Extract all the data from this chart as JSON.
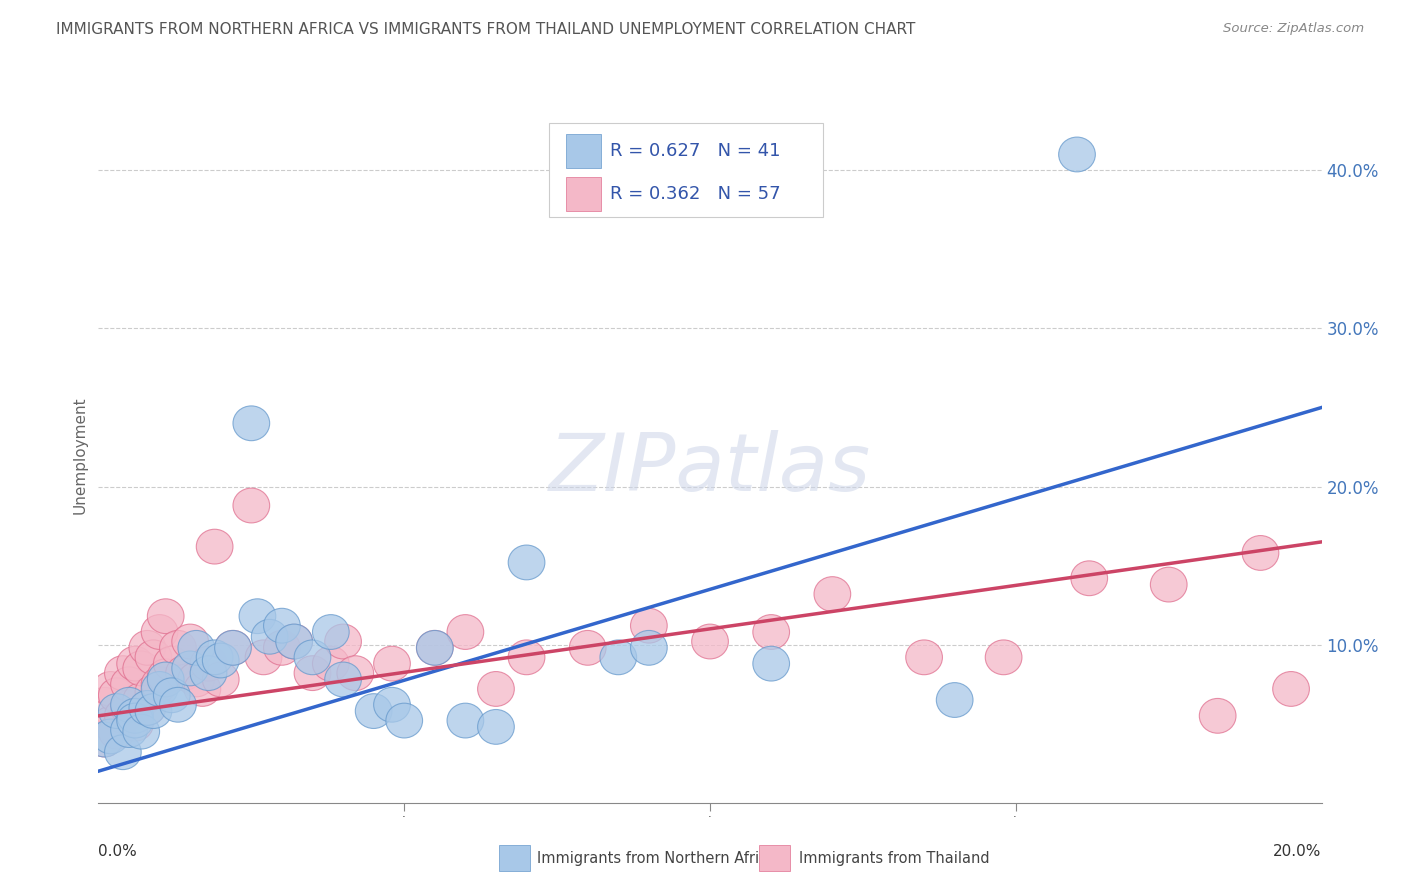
{
  "title": "IMMIGRANTS FROM NORTHERN AFRICA VS IMMIGRANTS FROM THAILAND UNEMPLOYMENT CORRELATION CHART",
  "source": "Source: ZipAtlas.com",
  "ylabel": "Unemployment",
  "xlim": [
    0.0,
    0.2
  ],
  "ylim": [
    0.0,
    0.44
  ],
  "r_na": 0.627,
  "n_na": 41,
  "r_th": 0.362,
  "n_th": 57,
  "color_blue": "#a8c8e8",
  "color_blue_edge": "#6699cc",
  "color_pink": "#f4b8c8",
  "color_pink_edge": "#e07090",
  "line_blue": "#3366cc",
  "line_pink": "#cc4466",
  "legend_text_color": "#3355aa",
  "title_color": "#555555",
  "source_color": "#888888",
  "watermark": "ZIPatlas",
  "grid_color": "#cccccc",
  "ytick_color": "#4477bb",
  "na_x": [
    0.001,
    0.002,
    0.003,
    0.004,
    0.005,
    0.005,
    0.006,
    0.006,
    0.007,
    0.008,
    0.009,
    0.01,
    0.011,
    0.012,
    0.013,
    0.015,
    0.016,
    0.018,
    0.019,
    0.02,
    0.022,
    0.025,
    0.026,
    0.028,
    0.03,
    0.032,
    0.035,
    0.038,
    0.04,
    0.045,
    0.048,
    0.05,
    0.055,
    0.06,
    0.065,
    0.07,
    0.085,
    0.09,
    0.11,
    0.14,
    0.16
  ],
  "na_y": [
    0.04,
    0.042,
    0.058,
    0.032,
    0.046,
    0.062,
    0.055,
    0.052,
    0.045,
    0.06,
    0.058,
    0.072,
    0.078,
    0.068,
    0.062,
    0.085,
    0.098,
    0.082,
    0.092,
    0.09,
    0.098,
    0.24,
    0.118,
    0.105,
    0.112,
    0.102,
    0.092,
    0.108,
    0.078,
    0.058,
    0.062,
    0.052,
    0.098,
    0.052,
    0.048,
    0.152,
    0.092,
    0.098,
    0.088,
    0.065,
    0.41
  ],
  "th_x": [
    0.001,
    0.001,
    0.002,
    0.002,
    0.003,
    0.003,
    0.004,
    0.004,
    0.005,
    0.005,
    0.006,
    0.006,
    0.007,
    0.007,
    0.008,
    0.008,
    0.009,
    0.009,
    0.01,
    0.01,
    0.011,
    0.011,
    0.012,
    0.013,
    0.014,
    0.015,
    0.016,
    0.017,
    0.018,
    0.019,
    0.02,
    0.022,
    0.025,
    0.027,
    0.03,
    0.032,
    0.035,
    0.038,
    0.04,
    0.042,
    0.048,
    0.055,
    0.06,
    0.065,
    0.07,
    0.08,
    0.09,
    0.1,
    0.11,
    0.12,
    0.135,
    0.148,
    0.162,
    0.175,
    0.183,
    0.19,
    0.195
  ],
  "th_y": [
    0.04,
    0.062,
    0.05,
    0.072,
    0.045,
    0.068,
    0.055,
    0.082,
    0.06,
    0.075,
    0.05,
    0.088,
    0.065,
    0.085,
    0.06,
    0.098,
    0.07,
    0.092,
    0.075,
    0.108,
    0.08,
    0.118,
    0.088,
    0.098,
    0.082,
    0.102,
    0.078,
    0.072,
    0.088,
    0.162,
    0.078,
    0.098,
    0.188,
    0.092,
    0.098,
    0.102,
    0.082,
    0.088,
    0.102,
    0.082,
    0.088,
    0.098,
    0.108,
    0.072,
    0.092,
    0.098,
    0.112,
    0.102,
    0.108,
    0.132,
    0.092,
    0.092,
    0.142,
    0.138,
    0.055,
    0.158,
    0.072
  ],
  "line_na_x0": 0.0,
  "line_na_y0": 0.02,
  "line_na_x1": 0.2,
  "line_na_y1": 0.25,
  "line_th_x0": 0.0,
  "line_th_y0": 0.055,
  "line_th_x1": 0.2,
  "line_th_y1": 0.165
}
